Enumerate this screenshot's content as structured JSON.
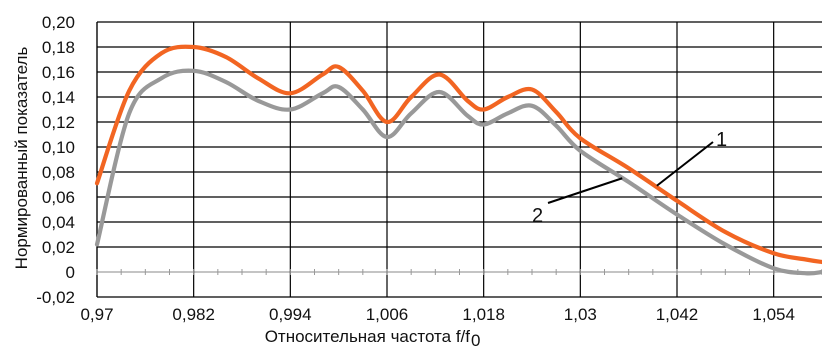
{
  "chart_data": {
    "type": "line",
    "title": "",
    "xlabel": "Относительная частота f/f",
    "xlabel_sub": "0",
    "ylabel": "Нормированный показатель",
    "xlim": [
      0.97,
      1.06
    ],
    "ylim": [
      -0.02,
      0.2
    ],
    "x_ticks": [
      0.97,
      0.982,
      0.994,
      1.006,
      1.018,
      1.03,
      1.042,
      1.054
    ],
    "x_tick_labels": [
      "0,97",
      "0,982",
      "0,994",
      "1,006",
      "1,018",
      "1,03",
      "1,042",
      "1,054"
    ],
    "y_ticks": [
      -0.02,
      0,
      0.02,
      0.04,
      0.06,
      0.08,
      0.1,
      0.12,
      0.14,
      0.16,
      0.18,
      0.2
    ],
    "y_tick_labels": [
      "-0,02",
      "0",
      "0,02",
      "0,04",
      "0,06",
      "0,08",
      "0,10",
      "0,12",
      "0,14",
      "0,16",
      "0,18",
      "0,20"
    ],
    "grid": true,
    "series": [
      {
        "name": "1",
        "color": "#f26522",
        "x": [
          0.97,
          0.974,
          0.978,
          0.982,
          0.986,
          0.99,
          0.994,
          0.998,
          1.0,
          1.003,
          1.006,
          1.009,
          1.0125,
          1.016,
          1.018,
          1.021,
          1.024,
          1.027,
          1.03,
          1.036,
          1.042,
          1.048,
          1.054,
          1.058,
          1.06
        ],
        "y": [
          0.071,
          0.145,
          0.175,
          0.18,
          0.172,
          0.155,
          0.143,
          0.158,
          0.164,
          0.145,
          0.12,
          0.14,
          0.158,
          0.137,
          0.13,
          0.14,
          0.146,
          0.128,
          0.107,
          0.083,
          0.057,
          0.032,
          0.015,
          0.01,
          0.008
        ]
      },
      {
        "name": "2",
        "color": "#999999",
        "x": [
          0.97,
          0.974,
          0.978,
          0.982,
          0.986,
          0.99,
          0.994,
          0.998,
          1.0,
          1.003,
          1.006,
          1.009,
          1.0125,
          1.016,
          1.018,
          1.021,
          1.024,
          1.027,
          1.03,
          1.036,
          1.042,
          1.048,
          1.054,
          1.058,
          1.06
        ],
        "y": [
          0.022,
          0.127,
          0.155,
          0.161,
          0.152,
          0.137,
          0.13,
          0.143,
          0.148,
          0.13,
          0.108,
          0.127,
          0.144,
          0.125,
          0.118,
          0.127,
          0.133,
          0.117,
          0.097,
          0.072,
          0.046,
          0.022,
          0.003,
          -0.001,
          0.0
        ]
      }
    ],
    "annotations": [
      {
        "text": "1",
        "series": "1"
      },
      {
        "text": "2",
        "series": "2"
      }
    ]
  }
}
